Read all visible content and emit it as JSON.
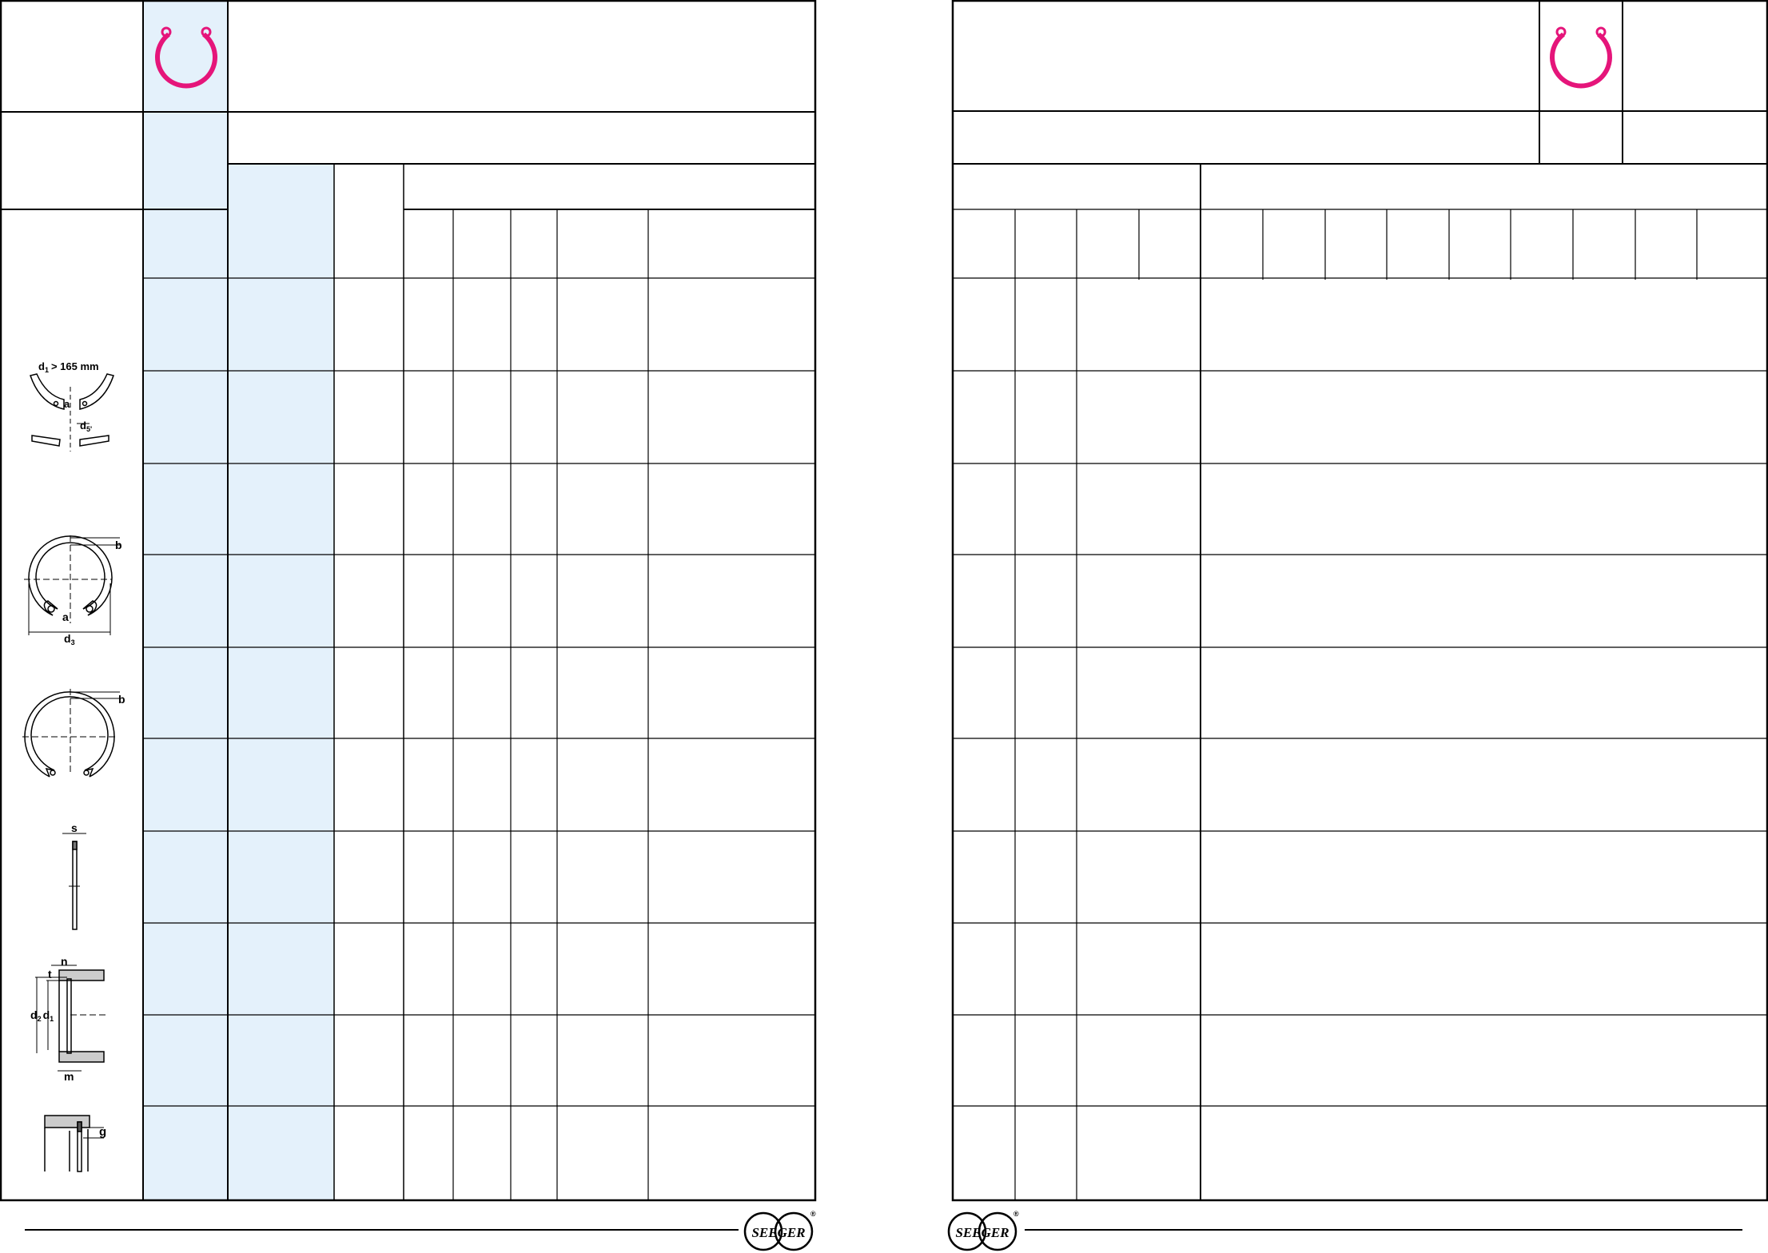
{
  "colors": {
    "accent_blue_fill": "#e4f1fb",
    "ring_icon_magenta": "#e5157a",
    "line": "#000000"
  },
  "left_page": {
    "ring_icon": "internal-circlip-icon",
    "diagram_labels": {
      "d1_prefix": "d",
      "d1_sub": "1",
      "d1_condition": "> 165 mm",
      "segment_a": "a",
      "d5_prefix": "d",
      "d5_sub": "5'",
      "ring_b": "b",
      "ring_a": "a",
      "d3_prefix": "d",
      "d3_sub": "3",
      "ring2_b": "b",
      "thickness_s": "s",
      "groove_n": "n",
      "groove_t": "t",
      "d2_prefix": "d",
      "d2_sub": "2",
      "groove_d1_prefix": "d",
      "groove_d1_sub": "1",
      "groove_m": "m",
      "edge_g": "g"
    }
  },
  "right_page": {
    "ring_icon": "internal-circlip-icon"
  },
  "footer": {
    "logo_text": "SEEGER",
    "registered_mark": "®"
  }
}
